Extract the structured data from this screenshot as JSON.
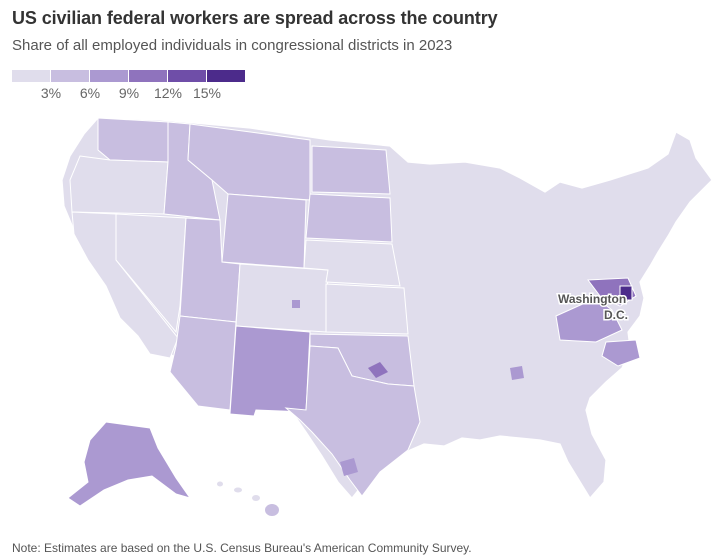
{
  "header": {
    "title": "US civilian federal workers are spread across the country",
    "subtitle": "Share of all employed individuals in congressional districts in 2023"
  },
  "legend": {
    "colors": [
      "#e0ddec",
      "#c8bee0",
      "#ab99d1",
      "#8f73bd",
      "#6f4ea8",
      "#4c2b8b"
    ],
    "ticks": [
      "3%",
      "6%",
      "9%",
      "12%",
      "15%"
    ]
  },
  "map": {
    "dc_label_line1": "Washington",
    "dc_label_line2": "D.C.",
    "regions": [
      {
        "id": "washington",
        "level": 1
      },
      {
        "id": "oregon",
        "level": 0
      },
      {
        "id": "california",
        "level": 0
      },
      {
        "id": "nevada",
        "level": 0
      },
      {
        "id": "idaho",
        "level": 1
      },
      {
        "id": "montana",
        "level": 1
      },
      {
        "id": "wyoming",
        "level": 1
      },
      {
        "id": "utah",
        "level": 1
      },
      {
        "id": "colorado",
        "level": 0
      },
      {
        "id": "arizona",
        "level": 1
      },
      {
        "id": "new-mexico",
        "level": 2
      },
      {
        "id": "north-dakota",
        "level": 1
      },
      {
        "id": "south-dakota",
        "level": 1
      },
      {
        "id": "nebraska",
        "level": 0
      },
      {
        "id": "kansas",
        "level": 0
      },
      {
        "id": "oklahoma",
        "level": 1
      },
      {
        "id": "texas",
        "level": 1
      },
      {
        "id": "alaska",
        "level": 2
      },
      {
        "id": "hawaii",
        "level": 1
      },
      {
        "id": "virginia",
        "level": 2
      },
      {
        "id": "maryland",
        "level": 3
      },
      {
        "id": "dc",
        "level": 5
      }
    ]
  },
  "footer": {
    "note": "Note: Estimates are based on the U.S. Census Bureau's American Community Survey."
  }
}
